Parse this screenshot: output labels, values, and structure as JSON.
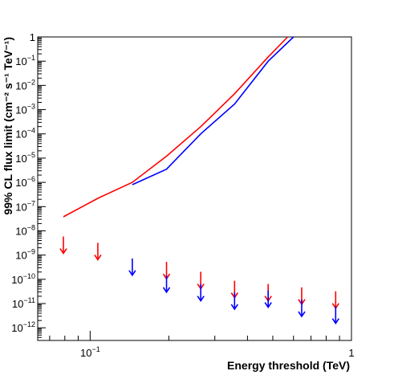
{
  "chart_data": {
    "type": "line",
    "title": "",
    "xlabel": "Energy threshold (TeV)",
    "ylabel": "99% CL flux limit (cm⁻² s⁻¹ TeV⁻¹)",
    "x_scale": "log",
    "y_scale": "log",
    "xlim": [
      0.063,
      1.0
    ],
    "ylim": [
      3e-13,
      1.0
    ],
    "grid": false,
    "legend": "none",
    "x_tick_labels": [
      {
        "value": 0.1,
        "base": "10",
        "exp": "−1"
      },
      {
        "value": 1.0,
        "base": "1",
        "exp": ""
      }
    ],
    "y_tick_labels": [
      {
        "value": 1,
        "base": "1",
        "exp": ""
      },
      {
        "value": 0.1,
        "base": "10",
        "exp": "−1"
      },
      {
        "value": 0.01,
        "base": "10",
        "exp": "−2"
      },
      {
        "value": 0.001,
        "base": "10",
        "exp": "−3"
      },
      {
        "value": 0.0001,
        "base": "10",
        "exp": "−4"
      },
      {
        "value": 1e-05,
        "base": "10",
        "exp": "−5"
      },
      {
        "value": 1e-06,
        "base": "10",
        "exp": "−6"
      },
      {
        "value": 1e-07,
        "base": "10",
        "exp": "−7"
      },
      {
        "value": 1e-08,
        "base": "10",
        "exp": "−8"
      },
      {
        "value": 1e-09,
        "base": "10",
        "exp": "−9"
      },
      {
        "value": 1e-10,
        "base": "10",
        "exp": "−10"
      },
      {
        "value": 1e-11,
        "base": "10",
        "exp": "−11"
      },
      {
        "value": 1e-12,
        "base": "10",
        "exp": "−12"
      }
    ],
    "series": [
      {
        "color": "#ff0000",
        "line": {
          "x": [
            0.079,
            0.107,
            0.145,
            0.196,
            0.265,
            0.357,
            0.48,
            0.57
          ],
          "y": [
            3.8e-08,
            2.2e-07,
            1e-06,
            1.2e-05,
            0.0002,
            0.0045,
            0.15,
            1.0
          ]
        },
        "upper_limits": {
          "x": [
            0.079,
            0.107,
            0.196,
            0.265,
            0.357,
            0.48,
            0.645,
            0.87
          ],
          "y": [
            2e-09,
            1.1e-09,
            1.8e-10,
            7e-11,
            3e-11,
            2.2e-11,
            1.6e-11,
            1.1e-11
          ]
        }
      },
      {
        "color": "#0000ff",
        "line": {
          "x": [
            0.145,
            0.196,
            0.265,
            0.357,
            0.48,
            0.6
          ],
          "y": [
            8e-07,
            3.5e-06,
            0.0001,
            0.0017,
            0.1,
            1.0
          ]
        },
        "upper_limits": {
          "x": [
            0.145,
            0.196,
            0.265,
            0.357,
            0.48,
            0.645,
            0.87
          ],
          "y": [
            2.5e-10,
            5e-11,
            2.2e-11,
            1e-11,
            1.2e-11,
            5e-12,
            2.6e-12
          ]
        }
      }
    ]
  }
}
